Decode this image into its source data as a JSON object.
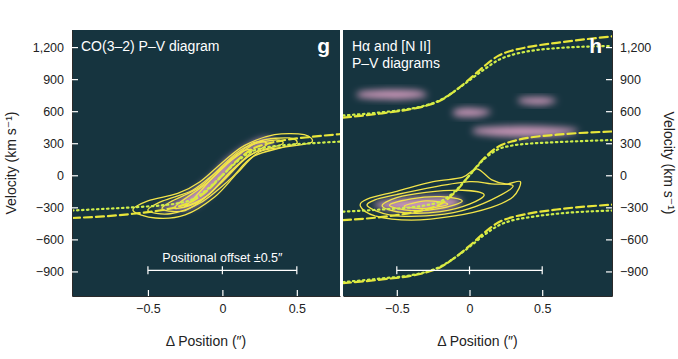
{
  "chart_data": [
    {
      "type": "line",
      "title": "CO(3–2) P–V diagram",
      "panel_label": "g",
      "xlabel": "Δ Position (″)",
      "ylabel": "Velocity (km s⁻¹)",
      "xlim": [
        -1.01,
        0.79
      ],
      "ylim": [
        -1130,
        1360
      ],
      "xticks": [
        {
          "value": -0.5,
          "label": "−0.5"
        },
        0,
        0.5
      ],
      "yticks": [
        {
          "value": -900,
          "label": "−900"
        },
        {
          "value": -600,
          "label": "−600"
        },
        {
          "value": -300,
          "label": "−300"
        },
        0,
        300,
        600,
        900,
        {
          "value": 1200,
          "label": "1,200"
        }
      ],
      "scale_bar": {
        "label": "Positional offset ±0.5″",
        "x": [
          -0.5,
          0,
          0.5
        ],
        "y": -890
      },
      "series": [
        {
          "type": "area",
          "color": "#e9a8cc",
          "x": [
            -0.45,
            -0.2,
            0,
            0.15,
            0.35,
            0.25,
            0.05,
            -0.1,
            -0.3
          ],
          "values": [
            -310,
            -300,
            -50,
            200,
            310,
            340,
            170,
            -40,
            -240
          ]
        },
        {
          "type": "contour",
          "color": "#f2e44a",
          "x": [
            -0.6,
            -0.45,
            -0.25,
            -0.05,
            0.1,
            0.25,
            0.45,
            0.6,
            0.55,
            0.35,
            0.15,
            0,
            -0.15,
            -0.3,
            -0.5
          ],
          "values": [
            -330,
            -400,
            -370,
            -200,
            20,
            220,
            270,
            310,
            380,
            380,
            280,
            120,
            -60,
            -170,
            -240
          ]
        },
        {
          "type": "contour",
          "color": "#f2e44a",
          "x": [
            -0.5,
            -0.35,
            -0.15,
            0.05,
            0.2,
            0.4,
            0.5,
            0.45,
            0.25,
            0.1,
            -0.05,
            -0.2,
            -0.4
          ],
          "values": [
            -330,
            -360,
            -260,
            -40,
            170,
            260,
            300,
            350,
            320,
            180,
            20,
            -140,
            -240
          ]
        },
        {
          "type": "contour",
          "color": "#f2e44a",
          "x": [
            -0.4,
            -0.25,
            -0.1,
            0.05,
            0.2,
            0.4,
            0.35,
            0.15,
            0,
            -0.15,
            -0.35
          ],
          "values": [
            -320,
            -330,
            -190,
            20,
            200,
            290,
            330,
            260,
            90,
            -110,
            -250
          ]
        },
        {
          "type": "contour",
          "color": "#f2e44a",
          "x": [
            -0.3,
            -0.15,
            0,
            0.15,
            0.3,
            0.2,
            0.05,
            -0.1,
            -0.3
          ],
          "values": [
            -310,
            -240,
            -60,
            150,
            290,
            300,
            130,
            -70,
            -270
          ]
        },
        {
          "type": "contour",
          "color": "#f2e44a",
          "x": [
            -0.25,
            -0.1,
            0.05,
            0.2,
            0.1,
            -0.05,
            -0.2
          ],
          "values": [
            -290,
            -190,
            30,
            230,
            200,
            0,
            -230
          ]
        },
        {
          "type": "line",
          "line_style": "dashed",
          "color": "#e8e63a",
          "x": [
            -1.01,
            -0.8,
            -0.6,
            -0.4,
            -0.3,
            -0.2,
            -0.1,
            0,
            0.1,
            0.2,
            0.3,
            0.4,
            0.6,
            0.79
          ],
          "values": [
            -400,
            -385,
            -360,
            -325,
            -295,
            -240,
            -140,
            0,
            140,
            245,
            295,
            325,
            360,
            385
          ]
        },
        {
          "type": "line",
          "line_style": "dotted",
          "color": "#cfee4a",
          "x": [
            -1.01,
            -0.8,
            -0.6,
            -0.4,
            -0.3,
            -0.2,
            -0.1,
            0,
            0.1,
            0.2,
            0.3,
            0.4,
            0.6,
            0.79
          ],
          "values": [
            -330,
            -315,
            -300,
            -280,
            -262,
            -225,
            -130,
            0,
            130,
            225,
            262,
            280,
            300,
            315
          ]
        }
      ]
    },
    {
      "type": "line",
      "title": [
        "Hα and [N II]",
        "P–V diagrams"
      ],
      "panel_label": "h",
      "xlabel": "Δ Position (″)",
      "ylabel": "Velocity (km s⁻¹)",
      "xlim": [
        -0.87,
        0.98
      ],
      "ylim": [
        -1130,
        1360
      ],
      "xticks": [
        {
          "value": -0.5,
          "label": "−0.5"
        },
        0,
        0.5
      ],
      "yticks": [
        {
          "value": -900,
          "label": "−900"
        },
        {
          "value": -600,
          "label": "−600"
        },
        {
          "value": -300,
          "label": "−300"
        },
        0,
        300,
        600,
        900,
        {
          "value": 1200,
          "label": "1,200"
        }
      ],
      "scale_bar": {
        "x": [
          -0.5,
          0,
          0.5
        ],
        "y": -890
      },
      "series": [
        {
          "type": "area",
          "color": "#e9a8cc",
          "x": [
            -0.65,
            -0.45,
            -0.2,
            -0.05,
            -0.15,
            -0.4,
            -0.6
          ],
          "values": [
            -290,
            -340,
            -330,
            -250,
            -200,
            -210,
            -240
          ]
        },
        {
          "type": "area",
          "color": "#e9a8cc",
          "x": [
            0.05,
            0.3,
            0.6,
            0.75,
            0.6,
            0.3,
            0.05
          ],
          "values": [
            390,
            360,
            370,
            420,
            450,
            460,
            440
          ]
        },
        {
          "type": "area",
          "color": "#e9a8cc",
          "x": [
            -0.75,
            -0.5,
            -0.3,
            -0.35,
            -0.55,
            -0.75
          ],
          "values": [
            730,
            710,
            740,
            790,
            800,
            780
          ]
        },
        {
          "type": "area",
          "color": "#e9a8cc",
          "x": [
            0.35,
            0.5,
            0.6,
            0.5,
            0.35
          ],
          "values": [
            680,
            660,
            700,
            730,
            720
          ]
        },
        {
          "type": "area",
          "color": "#e9a8cc",
          "x": [
            -0.1,
            0.05,
            0.15,
            0.0,
            -0.1
          ],
          "values": [
            560,
            550,
            600,
            630,
            610
          ]
        },
        {
          "type": "contour",
          "color": "#f2e44a",
          "x": [
            -0.75,
            -0.65,
            -0.4,
            -0.1,
            0.15,
            0.3,
            0.35,
            0.25,
            0.15,
            0.05,
            -0.05,
            -0.25,
            -0.5,
            -0.7
          ],
          "values": [
            -290,
            -380,
            -420,
            -380,
            -300,
            -200,
            -60,
            -80,
            -40,
            60,
            -20,
            -60,
            -150,
            -220
          ]
        },
        {
          "type": "contour",
          "color": "#f2e44a",
          "x": [
            -0.7,
            -0.55,
            -0.3,
            -0.05,
            0.15,
            0.3,
            0.15,
            0,
            -0.25,
            -0.5,
            -0.65
          ],
          "values": [
            -290,
            -370,
            -380,
            -330,
            -230,
            -100,
            -80,
            -60,
            -110,
            -180,
            -230
          ]
        },
        {
          "type": "contour",
          "color": "#f2e44a",
          "x": [
            -0.6,
            -0.45,
            -0.2,
            0,
            0.1,
            -0.05,
            -0.3,
            -0.5
          ],
          "values": [
            -290,
            -350,
            -340,
            -270,
            -180,
            -140,
            -160,
            -210
          ]
        },
        {
          "type": "contour",
          "color": "#f2e44a",
          "x": [
            -0.55,
            -0.4,
            -0.2,
            -0.05,
            -0.2,
            -0.4
          ],
          "values": [
            -280,
            -330,
            -310,
            -240,
            -200,
            -220
          ]
        },
        {
          "type": "contour",
          "color": "#f2e44a",
          "x": [
            -0.45,
            -0.3,
            -0.15,
            -0.3
          ],
          "values": [
            -290,
            -310,
            -270,
            -240
          ]
        },
        {
          "type": "line",
          "line_style": "dashed",
          "color": "#e8e63a",
          "x": [
            -0.87,
            -0.6,
            -0.4,
            -0.3,
            -0.2,
            -0.1,
            0,
            0.1,
            0.2,
            0.3,
            0.4,
            0.6,
            0.98
          ],
          "values": [
            -420,
            -390,
            -350,
            -320,
            -270,
            -160,
            0,
            160,
            270,
            320,
            350,
            380,
            410
          ]
        },
        {
          "type": "line",
          "line_style": "dotted",
          "color": "#cfee4a",
          "x": [
            -0.87,
            -0.6,
            -0.4,
            -0.3,
            -0.2,
            -0.1,
            0,
            0.1,
            0.2,
            0.3,
            0.4,
            0.6,
            0.98
          ],
          "values": [
            -340,
            -320,
            -300,
            -280,
            -245,
            -150,
            0,
            150,
            245,
            280,
            295,
            310,
            330
          ]
        },
        {
          "type": "line",
          "line_style": "dashed",
          "color": "#e8e63a",
          "x": [
            -0.87,
            -0.6,
            -0.4,
            -0.3,
            -0.2,
            -0.1,
            0,
            0.1,
            0.2,
            0.3,
            0.4,
            0.6,
            0.98
          ],
          "values": [
            540,
            580,
            620,
            650,
            700,
            790,
            900,
            1020,
            1120,
            1170,
            1200,
            1240,
            1300
          ]
        },
        {
          "type": "line",
          "line_style": "dotted",
          "color": "#cfee4a",
          "x": [
            -0.87,
            -0.6,
            -0.4,
            -0.3,
            -0.2,
            -0.1,
            0,
            0.1,
            0.2,
            0.3,
            0.4,
            0.6,
            0.98
          ],
          "values": [
            560,
            590,
            625,
            655,
            705,
            790,
            890,
            990,
            1080,
            1130,
            1160,
            1190,
            1210
          ]
        },
        {
          "type": "line",
          "line_style": "dashed",
          "color": "#e8e63a",
          "x": [
            -0.87,
            -0.6,
            -0.4,
            -0.3,
            -0.2,
            -0.1,
            0,
            0.1,
            0.2,
            0.3,
            0.4,
            0.6,
            0.98
          ],
          "values": [
            -1010,
            -975,
            -940,
            -910,
            -860,
            -770,
            -660,
            -540,
            -440,
            -390,
            -360,
            -320,
            -275
          ]
        },
        {
          "type": "line",
          "line_style": "dotted",
          "color": "#cfee4a",
          "x": [
            -0.87,
            -0.6,
            -0.4,
            -0.3,
            -0.2,
            -0.1,
            0,
            0.1,
            0.2,
            0.3,
            0.4,
            0.6,
            0.98
          ],
          "values": [
            -1000,
            -965,
            -935,
            -905,
            -855,
            -770,
            -670,
            -560,
            -470,
            -420,
            -395,
            -360,
            -330
          ]
        }
      ]
    }
  ]
}
